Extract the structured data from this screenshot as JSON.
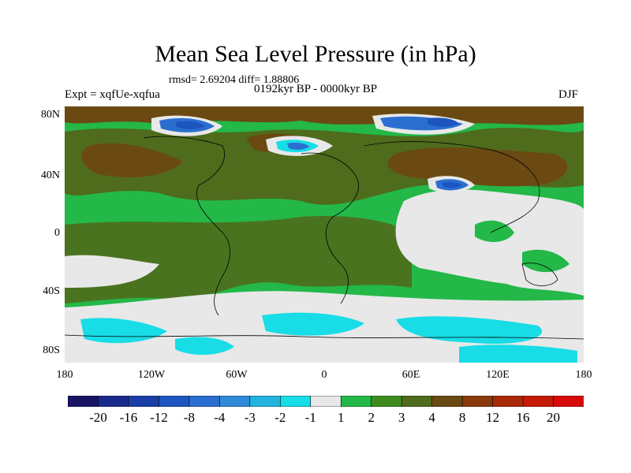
{
  "title": "Mean Sea Level Pressure (in hPa)",
  "stats": "rmsd= 2.69204 diff= 1.88806",
  "experiment": "Expt = xqfUe-xqfua",
  "period": "0192kyr BP - 0000kyr BP",
  "season": "DJF",
  "lat_labels": [
    "80N",
    "40N",
    "0",
    "40S",
    "80S"
  ],
  "lon_labels": [
    "180",
    "120W",
    "60W",
    "0",
    "60E",
    "120E",
    "180"
  ],
  "colorbar": {
    "labels": [
      "-20",
      "-16",
      "-12",
      "-8",
      "-4",
      "-3",
      "-2",
      "-1",
      "1",
      "2",
      "3",
      "4",
      "8",
      "12",
      "16",
      "20"
    ],
    "colors": [
      "#1a1466",
      "#1a2a8c",
      "#1a3ea8",
      "#1d55c0",
      "#2a6fd0",
      "#2f8ad8",
      "#22b4de",
      "#18dde6",
      "#e8e8e8",
      "#23b848",
      "#3e8c1f",
      "#4f6b1c",
      "#6a4a12",
      "#8a3a0c",
      "#a82a08",
      "#c41a06",
      "#d80a0a"
    ]
  },
  "colors": {
    "green": "#23b848",
    "olive": "#4f6b1c",
    "brown": "#6a4a12",
    "white": "#e8e8e8",
    "cyan": "#18dde6",
    "blue": "#2a6fd0",
    "dark_blue": "#1d55c0"
  }
}
